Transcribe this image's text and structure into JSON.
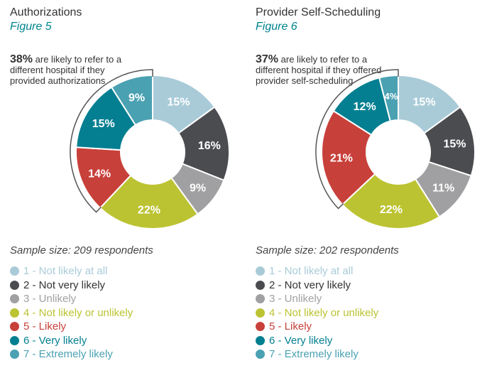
{
  "charts": [
    {
      "title": "Authorizations",
      "figure": "Figure 5",
      "callout_pct": "38%",
      "callout_text": "are likely to refer to a different hospital if they provided authorizations",
      "sample": "Sample size: 209 respondents"
    },
    {
      "title": "Provider Self-Scheduling",
      "figure": "Figure 6",
      "callout_pct": "37%",
      "callout_text": "are likely to refer to a different hospital if they offered provider self-scheduling",
      "sample": "Sample size: 202 respondents"
    }
  ],
  "legend": [
    {
      "label": "1 - Not likely at all",
      "color": "#a9cbd8"
    },
    {
      "label": "2 - Not very likely",
      "color": "#4b4c50"
    },
    {
      "label": "3 - Unlikely",
      "color": "#a0a0a2"
    },
    {
      "label": "4 - Not likely or unlikely",
      "color": "#bcc332"
    },
    {
      "label": "5 - Likely",
      "color": "#c8403a"
    },
    {
      "label": "6 - Very likely",
      "color": "#047f91"
    },
    {
      "label": "7 - Extremely likely",
      "color": "#4aa1b2"
    }
  ],
  "chart_data": [
    {
      "type": "pie",
      "title": "Authorizations",
      "categories": [
        "1 - Not likely at all",
        "2 - Not very likely",
        "3 - Unlikely",
        "4 - Not likely or unlikely",
        "5 - Likely",
        "6 - Very likely",
        "7 - Extremely likely"
      ],
      "values": [
        15,
        16,
        9,
        22,
        14,
        15,
        9
      ],
      "labels": [
        "15%",
        "16%",
        "9%",
        "22%",
        "14%",
        "15%",
        "9%"
      ],
      "colors": [
        "#a9cbd8",
        "#4b4c50",
        "#a0a0a2",
        "#bcc332",
        "#c8403a",
        "#047f91",
        "#4aa1b2"
      ],
      "label_colors": [
        "#ffffff",
        "#ffffff",
        "#ffffff",
        "#ffffff",
        "#ffffff",
        "#ffffff",
        "#ffffff"
      ]
    },
    {
      "type": "pie",
      "title": "Provider Self-Scheduling",
      "categories": [
        "1 - Not likely at all",
        "2 - Not very likely",
        "3 - Unlikely",
        "4 - Not likely or unlikely",
        "5 - Likely",
        "6 - Very likely",
        "7 - Extremely likely"
      ],
      "values": [
        15,
        15,
        11,
        22,
        21,
        12,
        4
      ],
      "labels": [
        "15%",
        "15%",
        "11%",
        "22%",
        "21%",
        "12%",
        "4%"
      ],
      "colors": [
        "#a9cbd8",
        "#4b4c50",
        "#a0a0a2",
        "#bcc332",
        "#c8403a",
        "#047f91",
        "#4aa1b2"
      ],
      "label_colors": [
        "#ffffff",
        "#ffffff",
        "#ffffff",
        "#ffffff",
        "#ffffff",
        "#ffffff",
        "#ffffff"
      ]
    }
  ]
}
